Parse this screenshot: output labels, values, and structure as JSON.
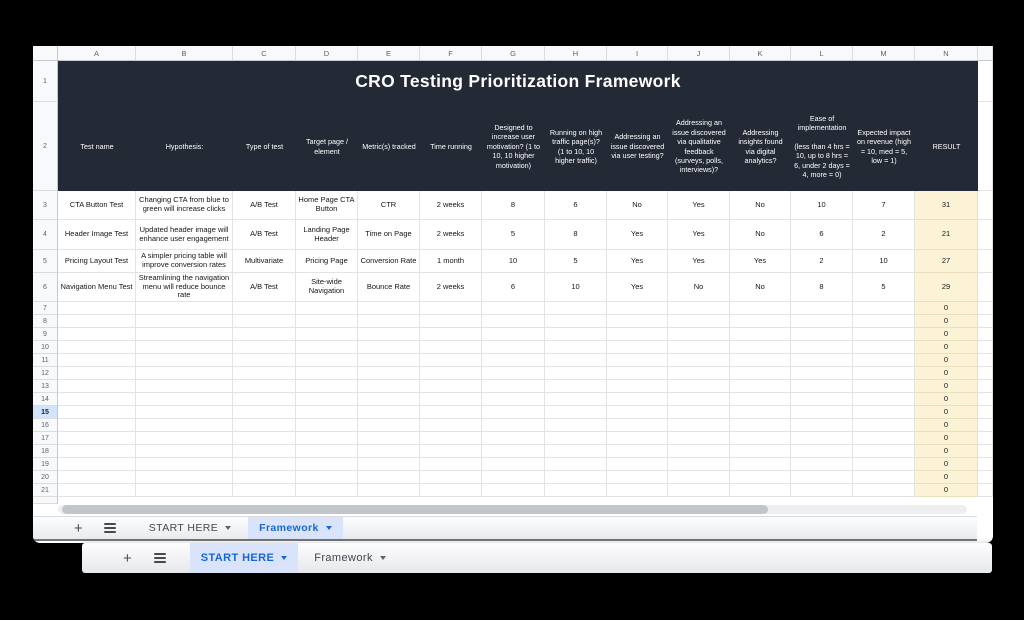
{
  "colors": {
    "accent_blue": "#1767d2",
    "active_tab_background": "#d9e3f9",
    "table_header_dark": "#242936",
    "result_column_fill": "#fcf3d7",
    "selected_row_fill": "#d2e3fc"
  },
  "icons": {
    "add_sheet": "+"
  },
  "spreadsheet": {
    "title_row_num": "1",
    "header_row_num": "2",
    "selected_row_num": "15",
    "column_letters": [
      "A",
      "B",
      "C",
      "D",
      "E",
      "F",
      "G",
      "H",
      "I",
      "J",
      "K",
      "L",
      "M",
      "N"
    ],
    "title": "CRO Testing Prioritization Framework",
    "column_headers": [
      "Test name",
      "Hypothesis:",
      "Type of test",
      "Target page / element",
      "Metric(s) tracked",
      "Time running",
      "Designed to increase user motivation? (1 to 10, 10 higher motivation)",
      "Running on high traffic page(s)? (1 to 10, 10 higher traffic)",
      "Addressing an issue discovered via user testing?",
      "Addressing an issue discovered via qualitative feedback (surveys, polls, interviews)?",
      "Addressing insights found via digital analytics?",
      "Ease of implementation\n\n(less than 4 hrs = 10, up to 8 hrs = 6, under 2 days = 4, more = 0)",
      "Expected impact on revenue (high = 10, med = 5, low = 1)",
      "RESULT"
    ],
    "rows": [
      {
        "num": "3",
        "cells": [
          "CTA Button Test",
          "Changing CTA from blue to green will increase clicks",
          "A/B Test",
          "Home Page CTA Button",
          "CTR",
          "2 weeks",
          "8",
          "6",
          "No",
          "Yes",
          "No",
          "10",
          "7",
          "31"
        ]
      },
      {
        "num": "4",
        "cells": [
          "Header Image Test",
          "Updated header image will enhance user engagement",
          "A/B Test",
          "Landing Page Header",
          "Time on Page",
          "2 weeks",
          "5",
          "8",
          "Yes",
          "Yes",
          "No",
          "6",
          "2",
          "21"
        ]
      },
      {
        "num": "5",
        "cells": [
          "Pricing Layout Test",
          "A simpler pricing table will improve conversion rates",
          "Multivariate",
          "Pricing Page",
          "Conversion Rate",
          "1 month",
          "10",
          "5",
          "Yes",
          "Yes",
          "Yes",
          "2",
          "10",
          "27"
        ]
      },
      {
        "num": "6",
        "cells": [
          "Navigation Menu Test",
          "Streamlining the navigation menu will reduce bounce rate",
          "A/B Test",
          "Site-wide Navigation",
          "Bounce Rate",
          "2 weeks",
          "6",
          "10",
          "Yes",
          "No",
          "No",
          "8",
          "5",
          "29"
        ]
      },
      {
        "num": "7",
        "cells": [
          "",
          "",
          "",
          "",
          "",
          "",
          "",
          "",
          "",
          "",
          "",
          "",
          "",
          "0"
        ]
      },
      {
        "num": "8",
        "cells": [
          "",
          "",
          "",
          "",
          "",
          "",
          "",
          "",
          "",
          "",
          "",
          "",
          "",
          "0"
        ]
      },
      {
        "num": "9",
        "cells": [
          "",
          "",
          "",
          "",
          "",
          "",
          "",
          "",
          "",
          "",
          "",
          "",
          "",
          "0"
        ]
      },
      {
        "num": "10",
        "cells": [
          "",
          "",
          "",
          "",
          "",
          "",
          "",
          "",
          "",
          "",
          "",
          "",
          "",
          "0"
        ]
      },
      {
        "num": "11",
        "cells": [
          "",
          "",
          "",
          "",
          "",
          "",
          "",
          "",
          "",
          "",
          "",
          "",
          "",
          "0"
        ]
      },
      {
        "num": "12",
        "cells": [
          "",
          "",
          "",
          "",
          "",
          "",
          "",
          "",
          "",
          "",
          "",
          "",
          "",
          "0"
        ]
      },
      {
        "num": "13",
        "cells": [
          "",
          "",
          "",
          "",
          "",
          "",
          "",
          "",
          "",
          "",
          "",
          "",
          "",
          "0"
        ]
      },
      {
        "num": "14",
        "cells": [
          "",
          "",
          "",
          "",
          "",
          "",
          "",
          "",
          "",
          "",
          "",
          "",
          "",
          "0"
        ]
      },
      {
        "num": "15",
        "cells": [
          "",
          "",
          "",
          "",
          "",
          "",
          "",
          "",
          "",
          "",
          "",
          "",
          "",
          "0"
        ]
      },
      {
        "num": "16",
        "cells": [
          "",
          "",
          "",
          "",
          "",
          "",
          "",
          "",
          "",
          "",
          "",
          "",
          "",
          "0"
        ]
      },
      {
        "num": "17",
        "cells": [
          "",
          "",
          "",
          "",
          "",
          "",
          "",
          "",
          "",
          "",
          "",
          "",
          "",
          "0"
        ]
      },
      {
        "num": "18",
        "cells": [
          "",
          "",
          "",
          "",
          "",
          "",
          "",
          "",
          "",
          "",
          "",
          "",
          "",
          "0"
        ]
      },
      {
        "num": "19",
        "cells": [
          "",
          "",
          "",
          "",
          "",
          "",
          "",
          "",
          "",
          "",
          "",
          "",
          "",
          "0"
        ]
      },
      {
        "num": "20",
        "cells": [
          "",
          "",
          "",
          "",
          "",
          "",
          "",
          "",
          "",
          "",
          "",
          "",
          "",
          "0"
        ]
      },
      {
        "num": "21",
        "cells": [
          "",
          "",
          "",
          "",
          "",
          "",
          "",
          "",
          "",
          "",
          "",
          "",
          "",
          "0"
        ]
      }
    ]
  },
  "back_tab_bar": {
    "tabs": [
      {
        "label": "START HERE",
        "active": false
      },
      {
        "label": "Framework",
        "active": true
      }
    ]
  },
  "front_tab_bar": {
    "tabs": [
      {
        "label": "START HERE",
        "active": true
      },
      {
        "label": "Framework",
        "active": false
      }
    ]
  }
}
